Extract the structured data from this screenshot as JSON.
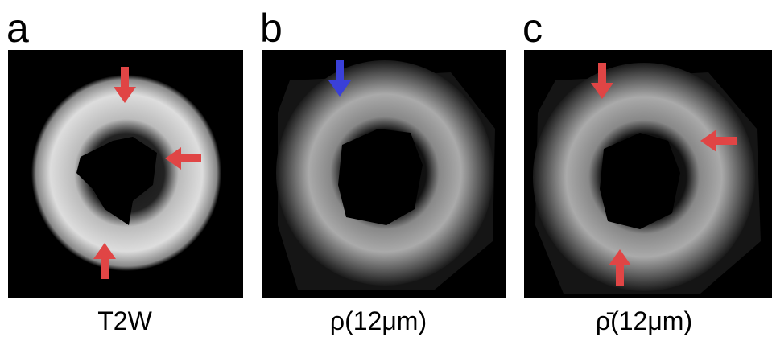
{
  "panels": [
    {
      "label": "a",
      "caption": "T2W"
    },
    {
      "label": "b",
      "caption": "ρ(12μm)"
    },
    {
      "label": "c",
      "caption": "ρ̄(12μm)"
    }
  ]
}
